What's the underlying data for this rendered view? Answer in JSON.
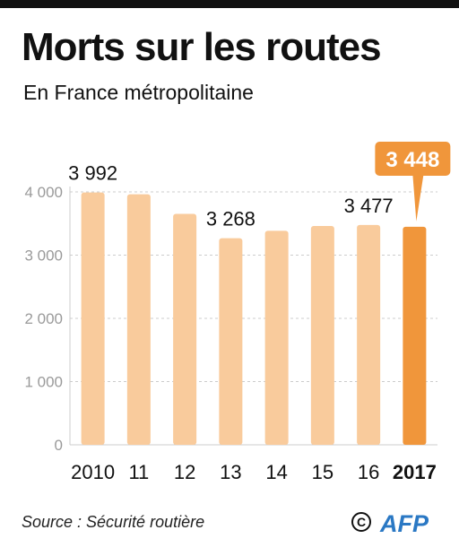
{
  "header": {
    "title": "Morts sur les routes",
    "subtitle": "En France métropolitaine"
  },
  "footer": {
    "source": "Source : Sécurité routière",
    "copyright_symbol": "©",
    "logo_text": "AFP"
  },
  "colors": {
    "bar": "#f9cb9c",
    "highlight_bar": "#f0963b",
    "grid": "#cccccc",
    "axis_text": "#9a9a9a",
    "text": "#111111",
    "logo_blue": "#2a78c4"
  },
  "chart_data": {
    "type": "bar",
    "categories": [
      "2010",
      "11",
      "12",
      "13",
      "14",
      "15",
      "16",
      "2017"
    ],
    "values": [
      3992,
      3963,
      3653,
      3268,
      3384,
      3461,
      3477,
      3448
    ],
    "data_labels": [
      {
        "index": 0,
        "text": "3 992"
      },
      {
        "index": 3,
        "text": "3 268"
      },
      {
        "index": 6,
        "text": "3 477"
      },
      {
        "index": 7,
        "text": "3 448",
        "highlight": true
      }
    ],
    "highlight_index": 7,
    "yticks": [
      0,
      1000,
      2000,
      3000,
      4000
    ],
    "ytick_labels": [
      "0",
      "1 000",
      "2 000",
      "3 000",
      "4 000"
    ],
    "ylim": [
      0,
      4000
    ],
    "grid": true
  }
}
